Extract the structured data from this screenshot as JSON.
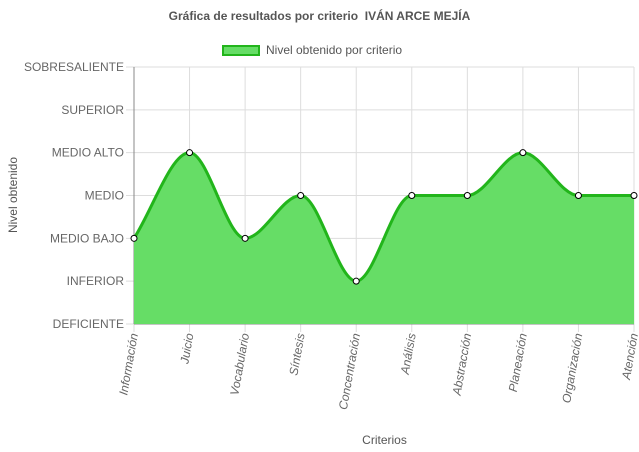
{
  "chart_data": {
    "type": "area",
    "title": "Gráfica de resultados por criterio  IVÁN ARCE MEJÍA",
    "xlabel": "Criterios",
    "ylabel": "Nivel obtenido",
    "categories": [
      "Información",
      "Juicio",
      "Vocabulario",
      "Síntesis",
      "Concentración",
      "Análisis",
      "Abstracción",
      "Planeación",
      "Organización",
      "Atención"
    ],
    "y_levels": [
      "DEFICIENTE",
      "INFERIOR",
      "MEDIO BAJO",
      "MEDIO",
      "MEDIO ALTO",
      "SUPERIOR",
      "SOBRESALIENTE"
    ],
    "ylim": [
      0,
      6
    ],
    "series": [
      {
        "name": "Nivel obtenido por criterio",
        "values": [
          2,
          4,
          2,
          3,
          1,
          3,
          3,
          4,
          3,
          3
        ]
      }
    ],
    "legend_position": "top",
    "grid": true,
    "colors": {
      "fill": "#66dd66",
      "line": "#22b51b",
      "point_fill": "#ffffff",
      "point_stroke": "#000000",
      "grid": "#dddddd",
      "axis": "#888888"
    }
  }
}
